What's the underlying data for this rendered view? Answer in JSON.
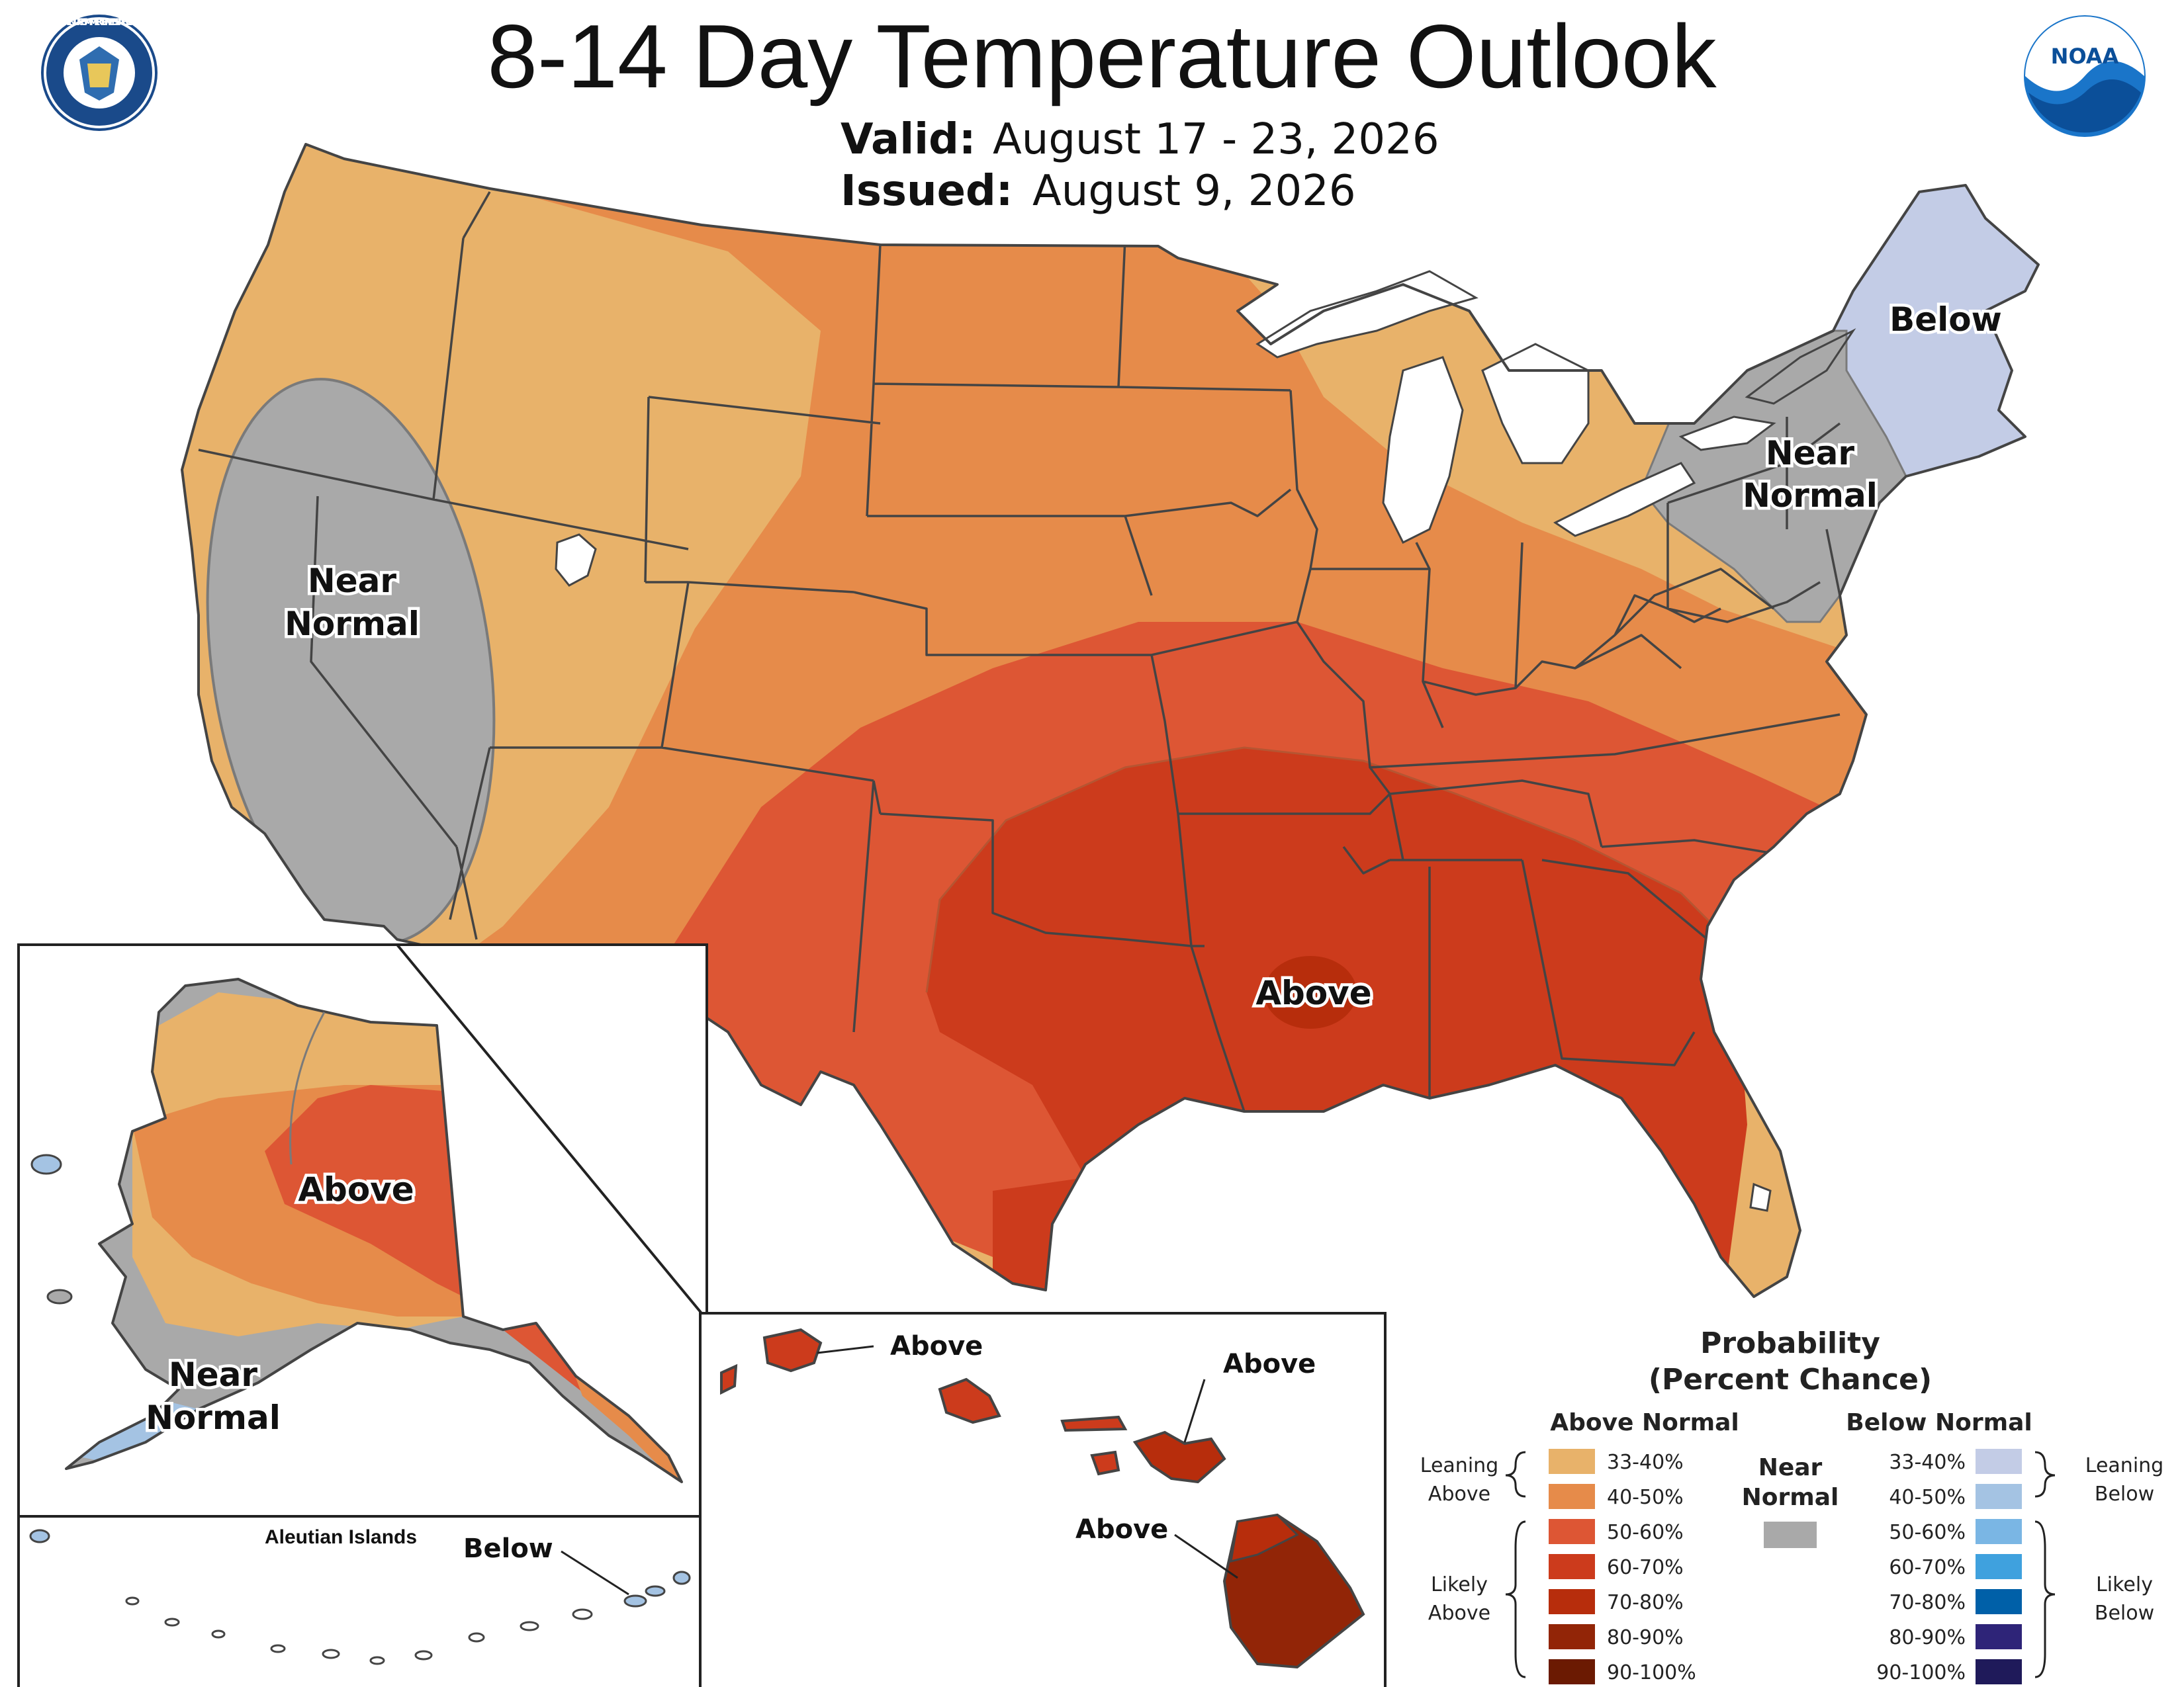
{
  "header": {
    "title": "8-14 Day Temperature Outlook",
    "valid_label": "Valid:",
    "valid_dates": "August 17 - 23, 2026",
    "issued_label": "Issued:",
    "issued_date": "August 9, 2026"
  },
  "logos": {
    "left": "DEPARTMENT OF COMMERCE · UNITED STATES OF AMERICA",
    "right": "NOAA"
  },
  "colors": {
    "above_33_40": "#e8b26a",
    "above_40_50": "#e68b4a",
    "above_50_60": "#dd5634",
    "above_60_70": "#cc3b1c",
    "above_70_80": "#b72d0c",
    "above_80_90": "#922507",
    "above_90_100": "#6b1a02",
    "near_normal": "#a9a9a9",
    "below_33_40": "#c3cce6",
    "below_40_50": "#a4c3e3",
    "below_50_60": "#7ab6e4",
    "below_60_70": "#3fa1de",
    "below_70_80": "#0060a8",
    "below_80_90": "#2e2478",
    "below_90_100": "#1f1a5a",
    "lakes": "#ffffff"
  },
  "map_labels": {
    "west": "Near Normal",
    "west_line1": "Near",
    "west_line2": "Normal",
    "northeast_below": "Below",
    "northeast_near_line1": "Near",
    "northeast_near_line2": "Normal",
    "south_above": "Above",
    "alaska_above": "Above",
    "alaska_near_line1": "Near",
    "alaska_near_line2": "Normal",
    "aleutian_title": "Aleutian Islands",
    "aleutian_below": "Below",
    "hawaii_kauai": "Above",
    "hawaii_maui": "Above",
    "hawaii_big_island": "Above"
  },
  "legend": {
    "title_line1": "Probability",
    "title_line2": "(Percent Chance)",
    "above_header": "Above Normal",
    "below_header": "Below Normal",
    "near_line1": "Near",
    "near_line2": "Normal",
    "leaning_above_1": "Leaning",
    "leaning_above_2": "Above",
    "likely_above_1": "Likely",
    "likely_above_2": "Above",
    "leaning_below_1": "Leaning",
    "leaning_below_2": "Below",
    "likely_below_1": "Likely",
    "likely_below_2": "Below",
    "ranges": [
      "33-40%",
      "40-50%",
      "50-60%",
      "60-70%",
      "70-80%",
      "80-90%",
      "90-100%"
    ]
  }
}
